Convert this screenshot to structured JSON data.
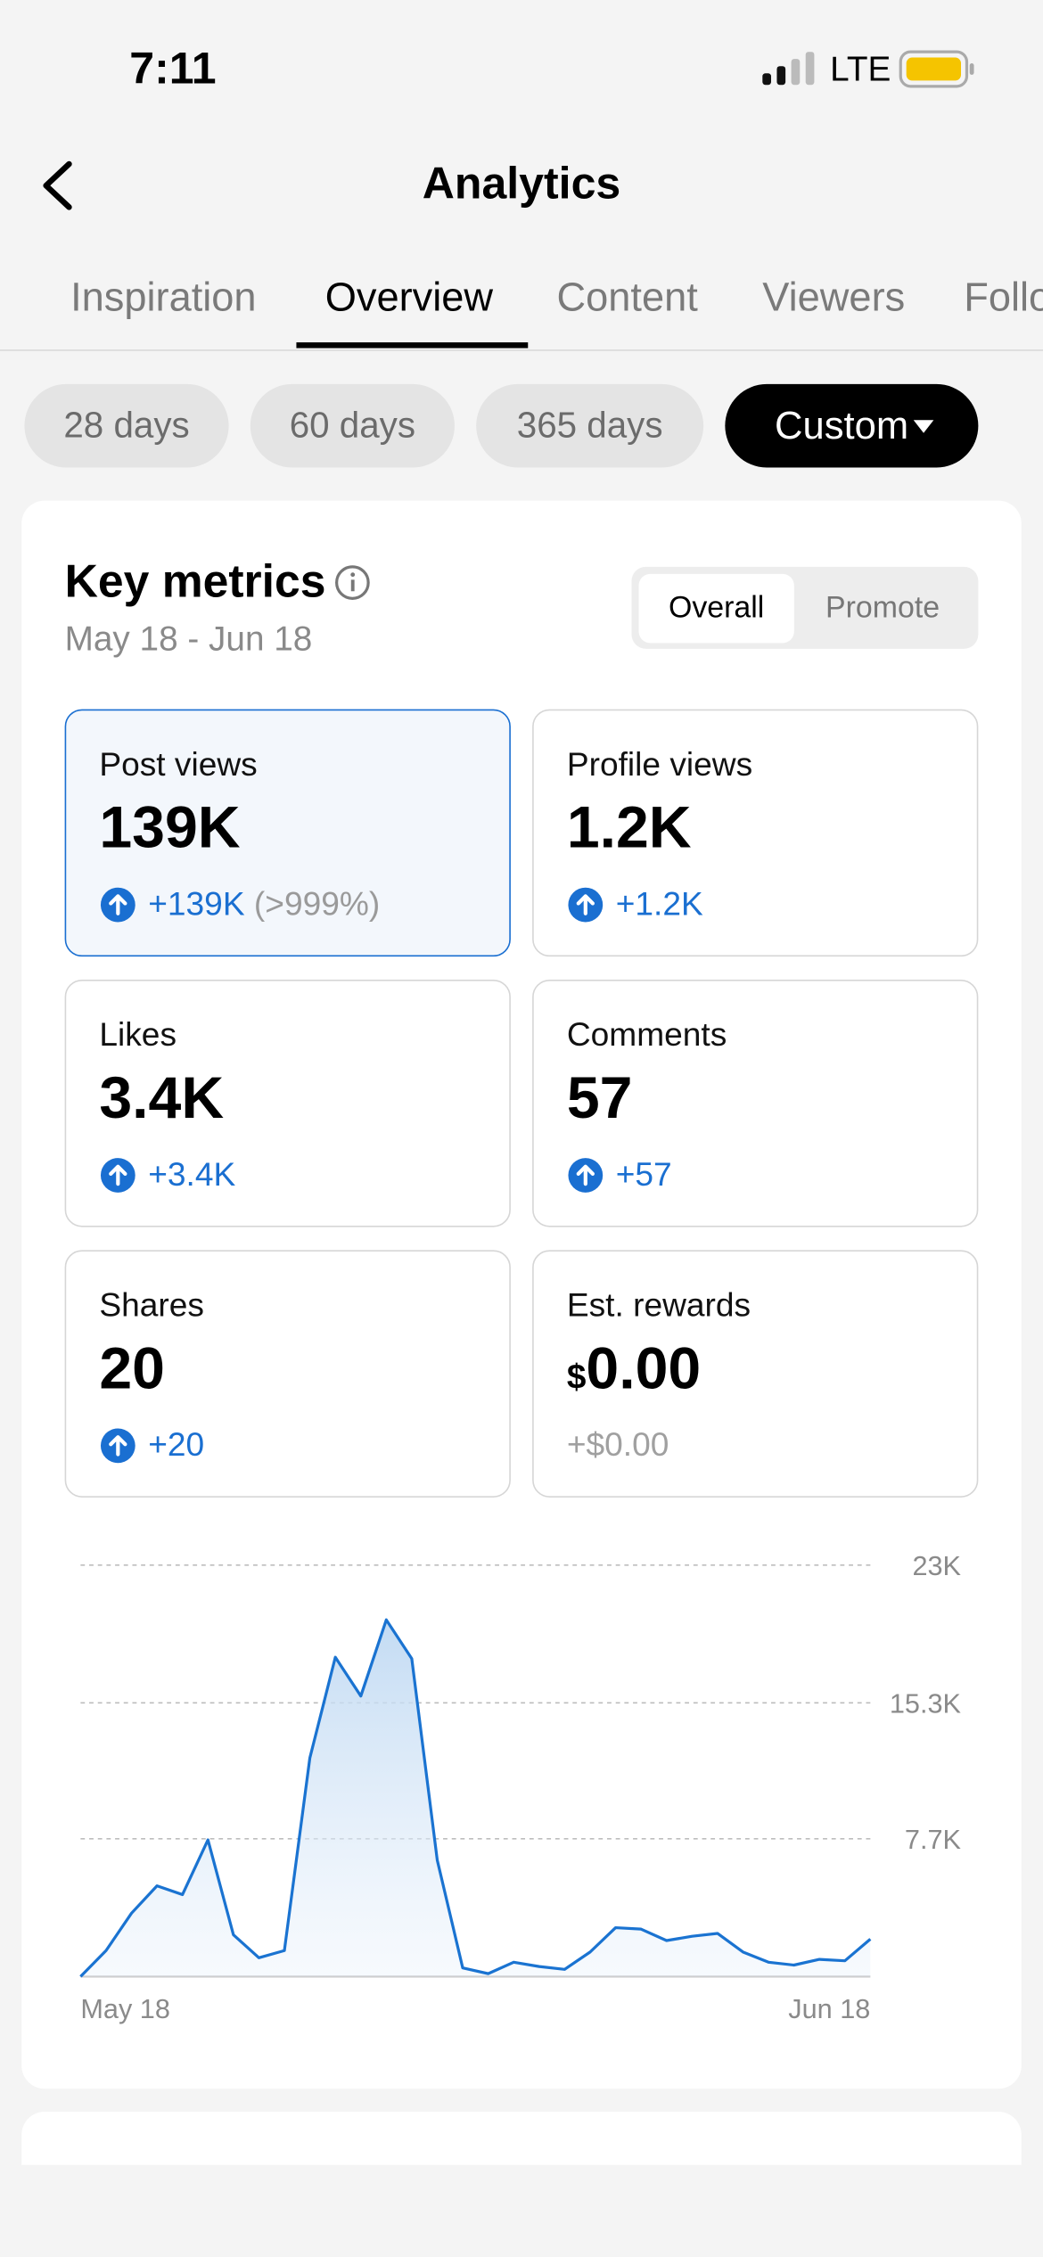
{
  "status_bar": {
    "time": "7:11",
    "network": "LTE"
  },
  "header": {
    "title": "Analytics"
  },
  "tabs": {
    "items": [
      "Inspiration",
      "Overview",
      "Content",
      "Viewers",
      "Followers"
    ],
    "active": 1
  },
  "filters": {
    "items": [
      "28 days",
      "60 days",
      "365 days",
      "Custom"
    ],
    "active": 3
  },
  "key_metrics": {
    "title": "Key metrics",
    "date_range": "May 18 - Jun 18",
    "toggle": [
      "Overall",
      "Promote"
    ],
    "toggle_active": 0,
    "cards": [
      {
        "label": "Post views",
        "value": "139K",
        "change": "+139K",
        "percent": "(>999%)",
        "trend": "up",
        "selected": true
      },
      {
        "label": "Profile views",
        "value": "1.2K",
        "change": "+1.2K",
        "trend": "up"
      },
      {
        "label": "Likes",
        "value": "3.4K",
        "change": "+3.4K",
        "trend": "up"
      },
      {
        "label": "Comments",
        "value": "57",
        "change": "+57",
        "trend": "up"
      },
      {
        "label": "Shares",
        "value": "20",
        "change": "+20",
        "trend": "up"
      },
      {
        "label": "Est. rewards",
        "currency": "$",
        "value": "0.00",
        "change": "+$0.00"
      }
    ]
  },
  "chart": {
    "type": "line",
    "color": "#1a73d1",
    "categories": [
      "May 18",
      null,
      null,
      null,
      null,
      null,
      null,
      null,
      null,
      null,
      null,
      null,
      null,
      null,
      null,
      null,
      null,
      null,
      null,
      null,
      null,
      null,
      null,
      null,
      null,
      null,
      null,
      null,
      null,
      null,
      null,
      "Jun 18"
    ],
    "values": [
      0,
      1450,
      3540,
      5070,
      4580,
      7640,
      2330,
      1050,
      1450,
      12220,
      17850,
      15680,
      19940,
      17770,
      6510,
      480,
      160,
      800,
      560,
      400,
      1370,
      2730,
      2650,
      2010,
      2250,
      2410,
      1370,
      800,
      640,
      960,
      880,
      2090
    ],
    "ylim": [
      0,
      23000
    ],
    "yticks": [
      {
        "value": 23000,
        "label": "23K"
      },
      {
        "value": 15300,
        "label": "15.3K"
      },
      {
        "value": 7700,
        "label": "7.7K"
      }
    ],
    "grid": true
  }
}
